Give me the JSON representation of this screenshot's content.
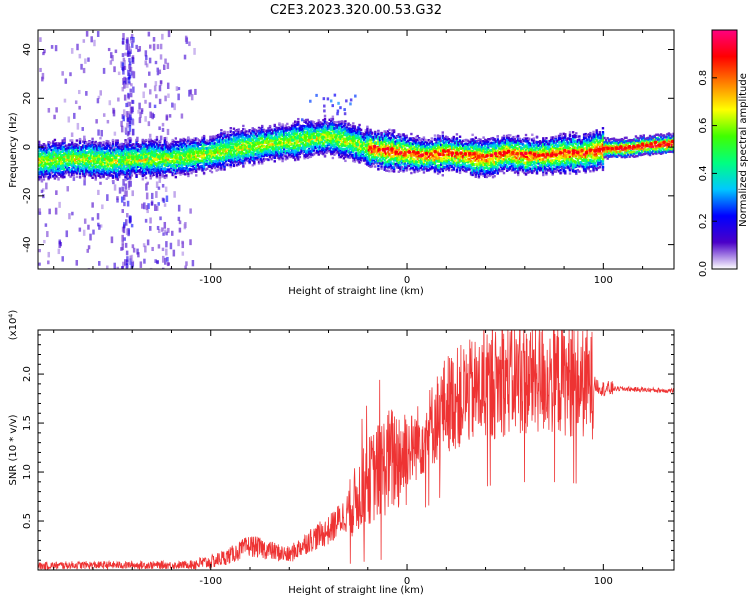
{
  "figure": {
    "title": "C2E3.2023.320.00.53.G32"
  },
  "chart_data": [
    {
      "type": "heatmap",
      "name": "spectrogram",
      "xlabel": "Height of straight line (km)",
      "ylabel": "Frequency (Hz)",
      "xlim": [
        -188,
        136
      ],
      "ylim": [
        -50,
        48
      ],
      "x_ticks": [
        -100,
        0,
        100
      ],
      "y_ticks": [
        -40,
        -20,
        0,
        20,
        40
      ],
      "colorbar": {
        "label": "Normalized spectral amplitude",
        "range": [
          0,
          1
        ],
        "ticks": [
          0.0,
          0.2,
          0.4,
          0.6,
          0.8
        ],
        "colors": [
          "#ffffff",
          "#4b00c8",
          "#0000ff",
          "#00c8ff",
          "#00ff80",
          "#40ff00",
          "#ffff00",
          "#ff8000",
          "#ff0000",
          "#ff0080"
        ]
      },
      "ridge": {
        "x": [
          -185,
          -170,
          -150,
          -135,
          -120,
          -110,
          -100,
          -90,
          -80,
          -70,
          -60,
          -50,
          -40,
          -30,
          -20,
          -10,
          0,
          10,
          20,
          30,
          40,
          50,
          60,
          70,
          80,
          90,
          100,
          110,
          120,
          136
        ],
        "y": [
          -5,
          -4,
          -5,
          -4,
          -4,
          -3,
          -2,
          0,
          1,
          2,
          3,
          4,
          5,
          3,
          0,
          -1,
          -2,
          -3,
          -2,
          -3,
          -4,
          -2,
          -3,
          -3,
          -2,
          -2,
          0,
          0,
          1,
          2
        ]
      }
    },
    {
      "type": "line",
      "name": "snr",
      "xlabel": "Height of straight line (km)",
      "ylabel": "SNR (10 * v/v)",
      "y_multiplier": "(x10⁴)",
      "xlim": [
        -188,
        136
      ],
      "ylim": [
        0,
        2.45
      ],
      "x_ticks": [
        -100,
        0,
        100
      ],
      "y_ticks": [
        0.5,
        1.0,
        1.5,
        2.0
      ],
      "y_tick_labels": [
        "0.5",
        "1.0",
        "1.5",
        "2.0"
      ],
      "color": "#ee3333",
      "series": [
        {
          "x": [
            -188,
            -170,
            -150,
            -130,
            -115,
            -100,
            -90,
            -80,
            -70,
            -60,
            -50,
            -40,
            -30,
            -20,
            -10,
            0,
            10,
            20,
            30,
            40,
            50,
            60,
            70,
            80,
            90,
            95,
            100,
            110,
            120,
            136
          ],
          "values": [
            0.04,
            0.05,
            0.05,
            0.05,
            0.05,
            0.08,
            0.15,
            0.25,
            0.2,
            0.15,
            0.3,
            0.4,
            0.6,
            0.9,
            1.1,
            1.2,
            1.4,
            1.7,
            1.8,
            1.85,
            1.95,
            1.95,
            1.95,
            1.95,
            1.9,
            1.9,
            1.85,
            1.85,
            1.84,
            1.83
          ]
        }
      ]
    }
  ]
}
